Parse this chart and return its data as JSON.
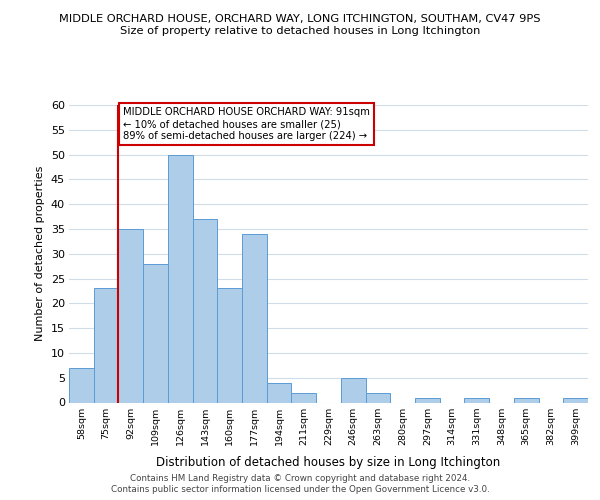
{
  "title_line1": "MIDDLE ORCHARD HOUSE, ORCHARD WAY, LONG ITCHINGTON, SOUTHAM, CV47 9PS",
  "title_line2": "Size of property relative to detached houses in Long Itchington",
  "xlabel": "Distribution of detached houses by size in Long Itchington",
  "ylabel": "Number of detached properties",
  "bin_labels": [
    "58sqm",
    "75sqm",
    "92sqm",
    "109sqm",
    "126sqm",
    "143sqm",
    "160sqm",
    "177sqm",
    "194sqm",
    "211sqm",
    "229sqm",
    "246sqm",
    "263sqm",
    "280sqm",
    "297sqm",
    "314sqm",
    "331sqm",
    "348sqm",
    "365sqm",
    "382sqm",
    "399sqm"
  ],
  "bar_heights": [
    7,
    23,
    35,
    28,
    50,
    37,
    23,
    34,
    4,
    2,
    0,
    5,
    2,
    0,
    1,
    0,
    1,
    0,
    1,
    0,
    1
  ],
  "bar_color": "#aecde8",
  "bar_edge_color": "#5b9bd5",
  "vline_x_index": 2,
  "vline_color": "#cc0000",
  "annotation_text": "MIDDLE ORCHARD HOUSE ORCHARD WAY: 91sqm\n← 10% of detached houses are smaller (25)\n89% of semi-detached houses are larger (224) →",
  "annotation_box_color": "#ffffff",
  "annotation_box_edge_color": "#cc0000",
  "ylim": [
    0,
    60
  ],
  "yticks": [
    0,
    5,
    10,
    15,
    20,
    25,
    30,
    35,
    40,
    45,
    50,
    55,
    60
  ],
  "footer_line1": "Contains HM Land Registry data © Crown copyright and database right 2024.",
  "footer_line2": "Contains public sector information licensed under the Open Government Licence v3.0.",
  "bg_color": "#ffffff",
  "grid_color": "#d0dce8"
}
